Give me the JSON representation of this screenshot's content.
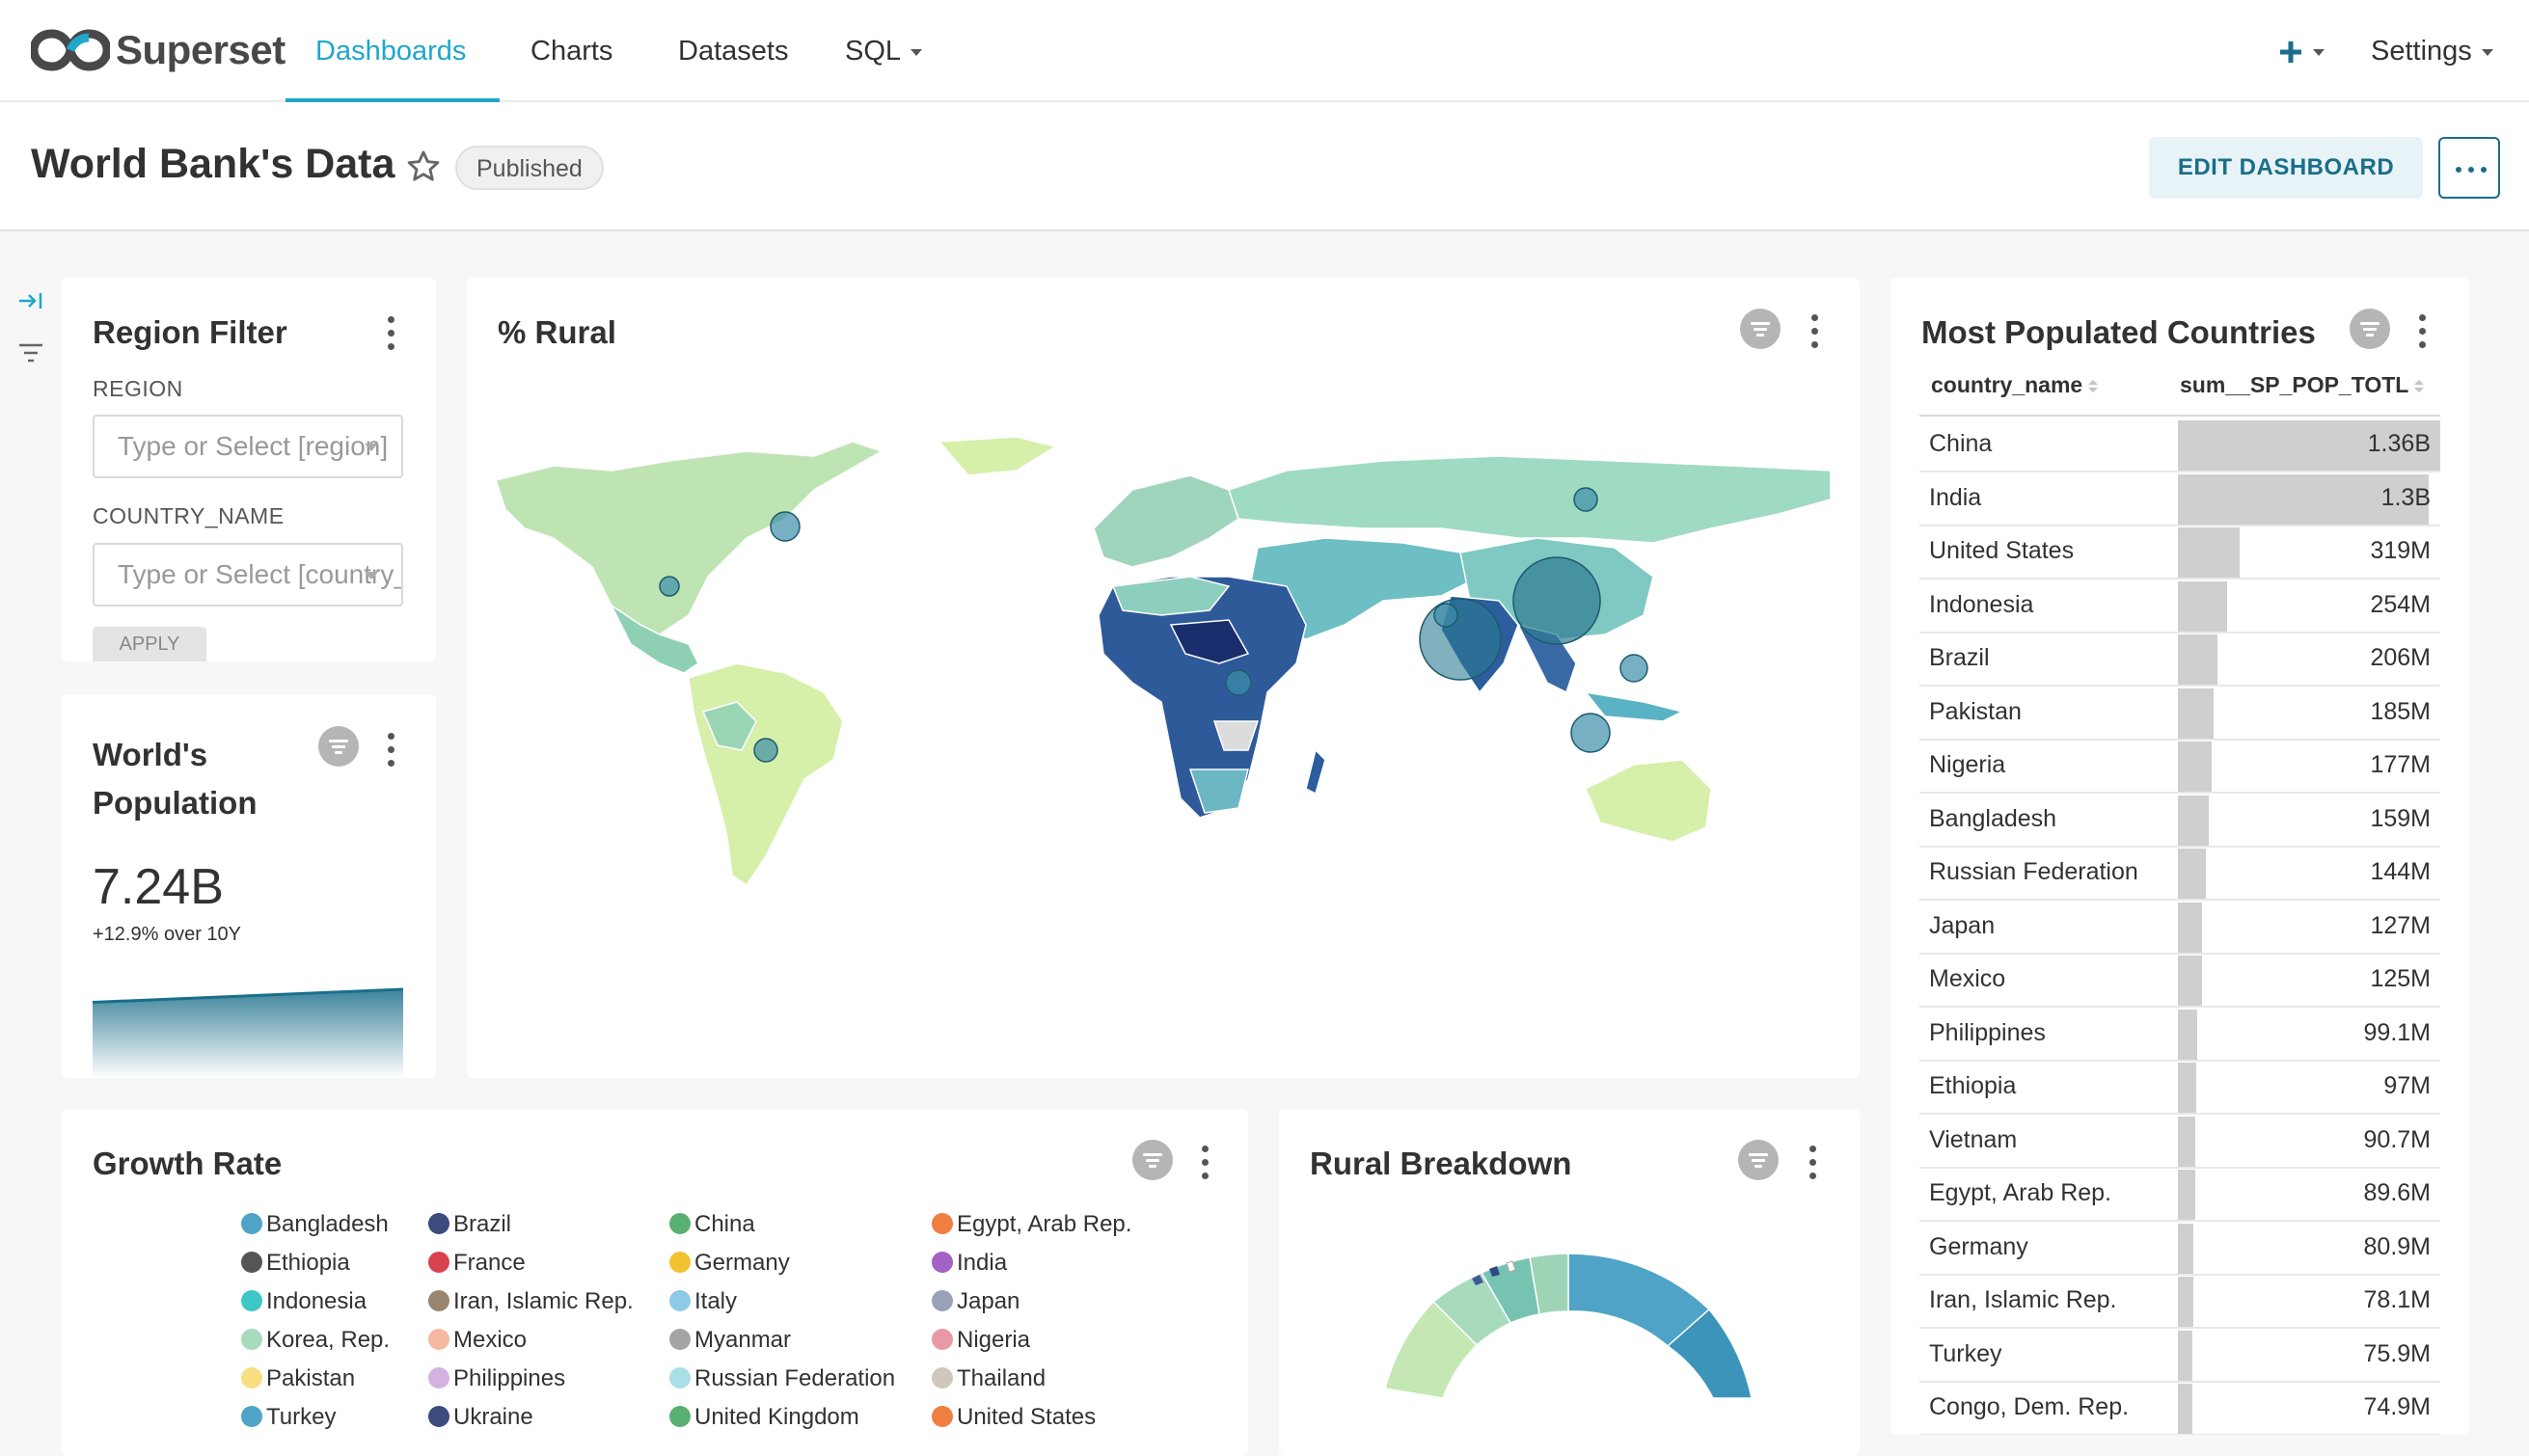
{
  "navbar": {
    "brand": "Superset",
    "items": [
      {
        "label": "Dashboards"
      },
      {
        "label": "Charts"
      },
      {
        "label": "Datasets"
      },
      {
        "label": "SQL"
      }
    ],
    "add_icon": "plus-icon",
    "settings_label": "Settings"
  },
  "header": {
    "title": "World Bank's Data",
    "status": "Published",
    "edit_label": "EDIT DASHBOARD"
  },
  "region_filter": {
    "title": "Region Filter",
    "region_label": "REGION",
    "region_placeholder": "Type or Select [region]",
    "country_label": "COUNTRY_NAME",
    "country_placeholder": "Type or Select [country_name]",
    "apply_label": "APPLY"
  },
  "rural_map": {
    "title": "% Rural"
  },
  "world_population": {
    "title_line1": "World's",
    "title_line2": "Population",
    "value": "7.24B",
    "subtext": "+12.9% over 10Y",
    "trend_start": 0.85,
    "trend_end": 1.0
  },
  "most_populated": {
    "title": "Most Populated Countries",
    "columns": [
      "country_name",
      "sum__SP_POP_TOTL"
    ],
    "rows": [
      {
        "country": "China",
        "value_label": "1.36B",
        "value": 1360000000
      },
      {
        "country": "India",
        "value_label": "1.3B",
        "value": 1300000000
      },
      {
        "country": "United States",
        "value_label": "319M",
        "value": 319000000
      },
      {
        "country": "Indonesia",
        "value_label": "254M",
        "value": 254000000
      },
      {
        "country": "Brazil",
        "value_label": "206M",
        "value": 206000000
      },
      {
        "country": "Pakistan",
        "value_label": "185M",
        "value": 185000000
      },
      {
        "country": "Nigeria",
        "value_label": "177M",
        "value": 177000000
      },
      {
        "country": "Bangladesh",
        "value_label": "159M",
        "value": 159000000
      },
      {
        "country": "Russian Federation",
        "value_label": "144M",
        "value": 144000000
      },
      {
        "country": "Japan",
        "value_label": "127M",
        "value": 127000000
      },
      {
        "country": "Mexico",
        "value_label": "125M",
        "value": 125000000
      },
      {
        "country": "Philippines",
        "value_label": "99.1M",
        "value": 99100000
      },
      {
        "country": "Ethiopia",
        "value_label": "97M",
        "value": 97000000
      },
      {
        "country": "Vietnam",
        "value_label": "90.7M",
        "value": 90700000
      },
      {
        "country": "Egypt, Arab Rep.",
        "value_label": "89.6M",
        "value": 89600000
      },
      {
        "country": "Germany",
        "value_label": "80.9M",
        "value": 80900000
      },
      {
        "country": "Iran, Islamic Rep.",
        "value_label": "78.1M",
        "value": 78100000
      },
      {
        "country": "Turkey",
        "value_label": "75.9M",
        "value": 75900000
      },
      {
        "country": "Congo, Dem. Rep.",
        "value_label": "74.9M",
        "value": 74900000
      }
    ]
  },
  "growth_rate": {
    "title": "Growth Rate",
    "legend": [
      {
        "name": "Bangladesh",
        "color": "#4fa3c7"
      },
      {
        "name": "Brazil",
        "color": "#3c4a7d"
      },
      {
        "name": "China",
        "color": "#5aaf73"
      },
      {
        "name": "Egypt, Arab Rep.",
        "color": "#ef7e40"
      },
      {
        "name": "Ethiopia",
        "color": "#555555"
      },
      {
        "name": "France",
        "color": "#d9434e"
      },
      {
        "name": "Germany",
        "color": "#f2c12e"
      },
      {
        "name": "India",
        "color": "#a262c6"
      },
      {
        "name": "Indonesia",
        "color": "#3ec6c8"
      },
      {
        "name": "Iran, Islamic Rep.",
        "color": "#9a8571"
      },
      {
        "name": "Italy",
        "color": "#8ec9e8"
      },
      {
        "name": "Japan",
        "color": "#9aa0b8"
      },
      {
        "name": "Korea, Rep.",
        "color": "#a8dbbe"
      },
      {
        "name": "Mexico",
        "color": "#f5b8a0"
      },
      {
        "name": "Myanmar",
        "color": "#a4a4a4"
      },
      {
        "name": "Nigeria",
        "color": "#e79aa6"
      },
      {
        "name": "Pakistan",
        "color": "#f7df82"
      },
      {
        "name": "Philippines",
        "color": "#d4b2e0"
      },
      {
        "name": "Russian Federation",
        "color": "#a8e0e6"
      },
      {
        "name": "Thailand",
        "color": "#cfc7bc"
      },
      {
        "name": "Turkey",
        "color": "#4fa3c7"
      },
      {
        "name": "Ukraine",
        "color": "#3c4a7d"
      },
      {
        "name": "United Kingdom",
        "color": "#5aaf73"
      },
      {
        "name": "United States",
        "color": "#ef7e40"
      }
    ]
  },
  "rural_breakdown": {
    "title": "Rural Breakdown"
  },
  "colors": {
    "accent": "#20a7c9",
    "edit_button_text": "#1a6e8a",
    "edit_button_bg": "#e8f3f7"
  }
}
